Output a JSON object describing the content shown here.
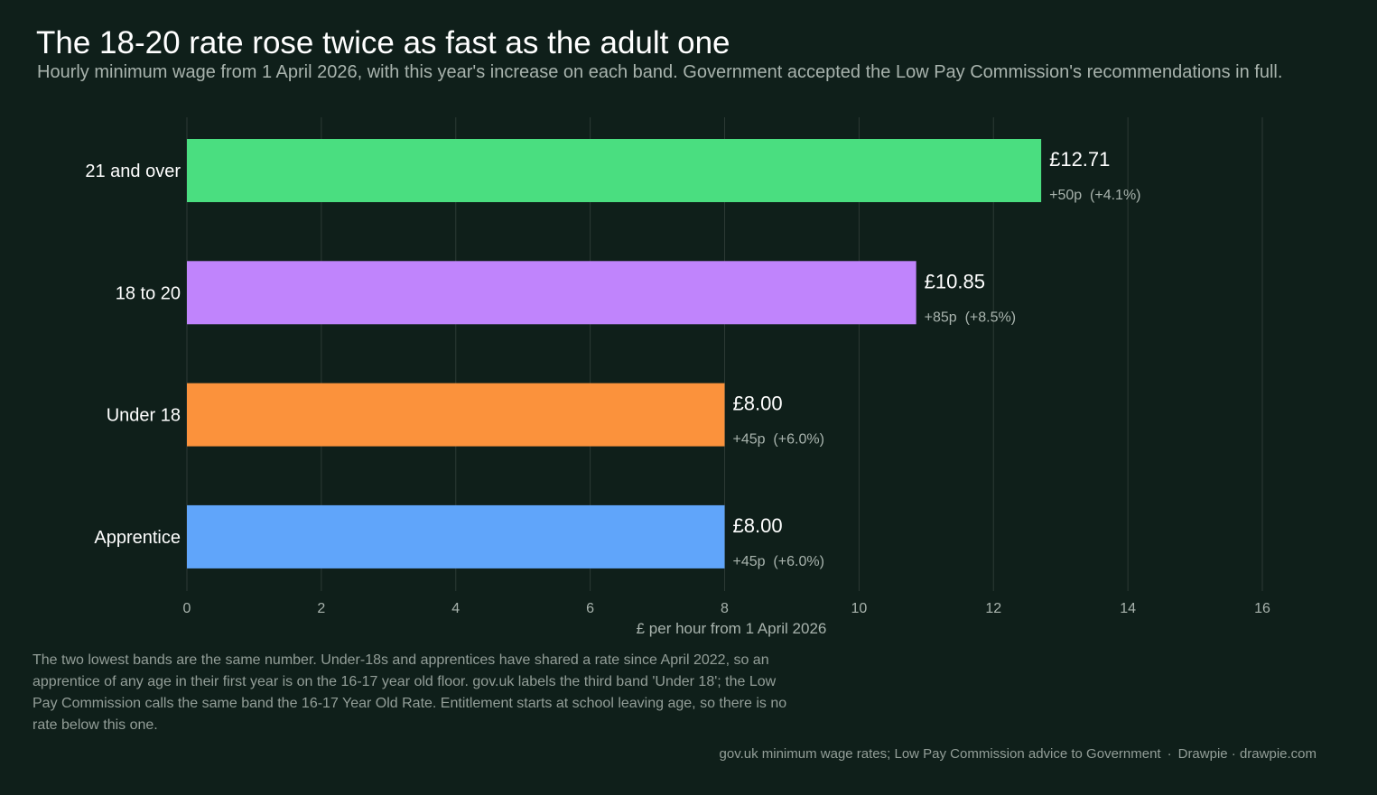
{
  "header": {
    "title": "The 18-20 rate rose twice as fast as the adult one",
    "subtitle": "Hourly minimum wage from 1 April 2026, with this year's increase on each band. Government accepted the Low Pay Commission's recommendations in full."
  },
  "chart_data": {
    "type": "bar",
    "orientation": "horizontal",
    "categories": [
      "21 and over",
      "18 to 20",
      "Under 18",
      "Apprentice"
    ],
    "values": [
      12.71,
      10.85,
      8.0,
      8.0
    ],
    "value_labels": [
      "£12.71",
      "£10.85",
      "£8.00",
      "£8.00"
    ],
    "change_labels": [
      "+50p  (+4.1%)",
      "+85p  (+8.5%)",
      "+45p  (+6.0%)",
      "+45p  (+6.0%)"
    ],
    "colors": [
      "#4ade80",
      "#c084fc",
      "#fb923c",
      "#60a5fa"
    ],
    "xlabel": "£ per hour from 1 April 2026",
    "ylabel": "",
    "xlim": [
      0,
      16
    ],
    "xticks": [
      0,
      2,
      4,
      6,
      8,
      10,
      12,
      14,
      16
    ],
    "grid": true
  },
  "note": "The two lowest bands are the same number. Under-18s and apprentices have shared a rate since April 2022, so an apprentice of any age in their first year is on the 16-17 year old floor. gov.uk labels the third band 'Under 18'; the Low Pay Commission calls the same band the 16-17 Year Old Rate. Entitlement starts at school leaving age, so there is no rate below this one.",
  "footer": {
    "source": "gov.uk minimum wage rates; Low Pay Commission advice to Government",
    "separator": "·",
    "credit": "Drawpie · drawpie.com"
  },
  "colors": {
    "background": "#0f1f1a",
    "gridline": "#2c3a35",
    "muted_text": "#a8b3ad"
  }
}
